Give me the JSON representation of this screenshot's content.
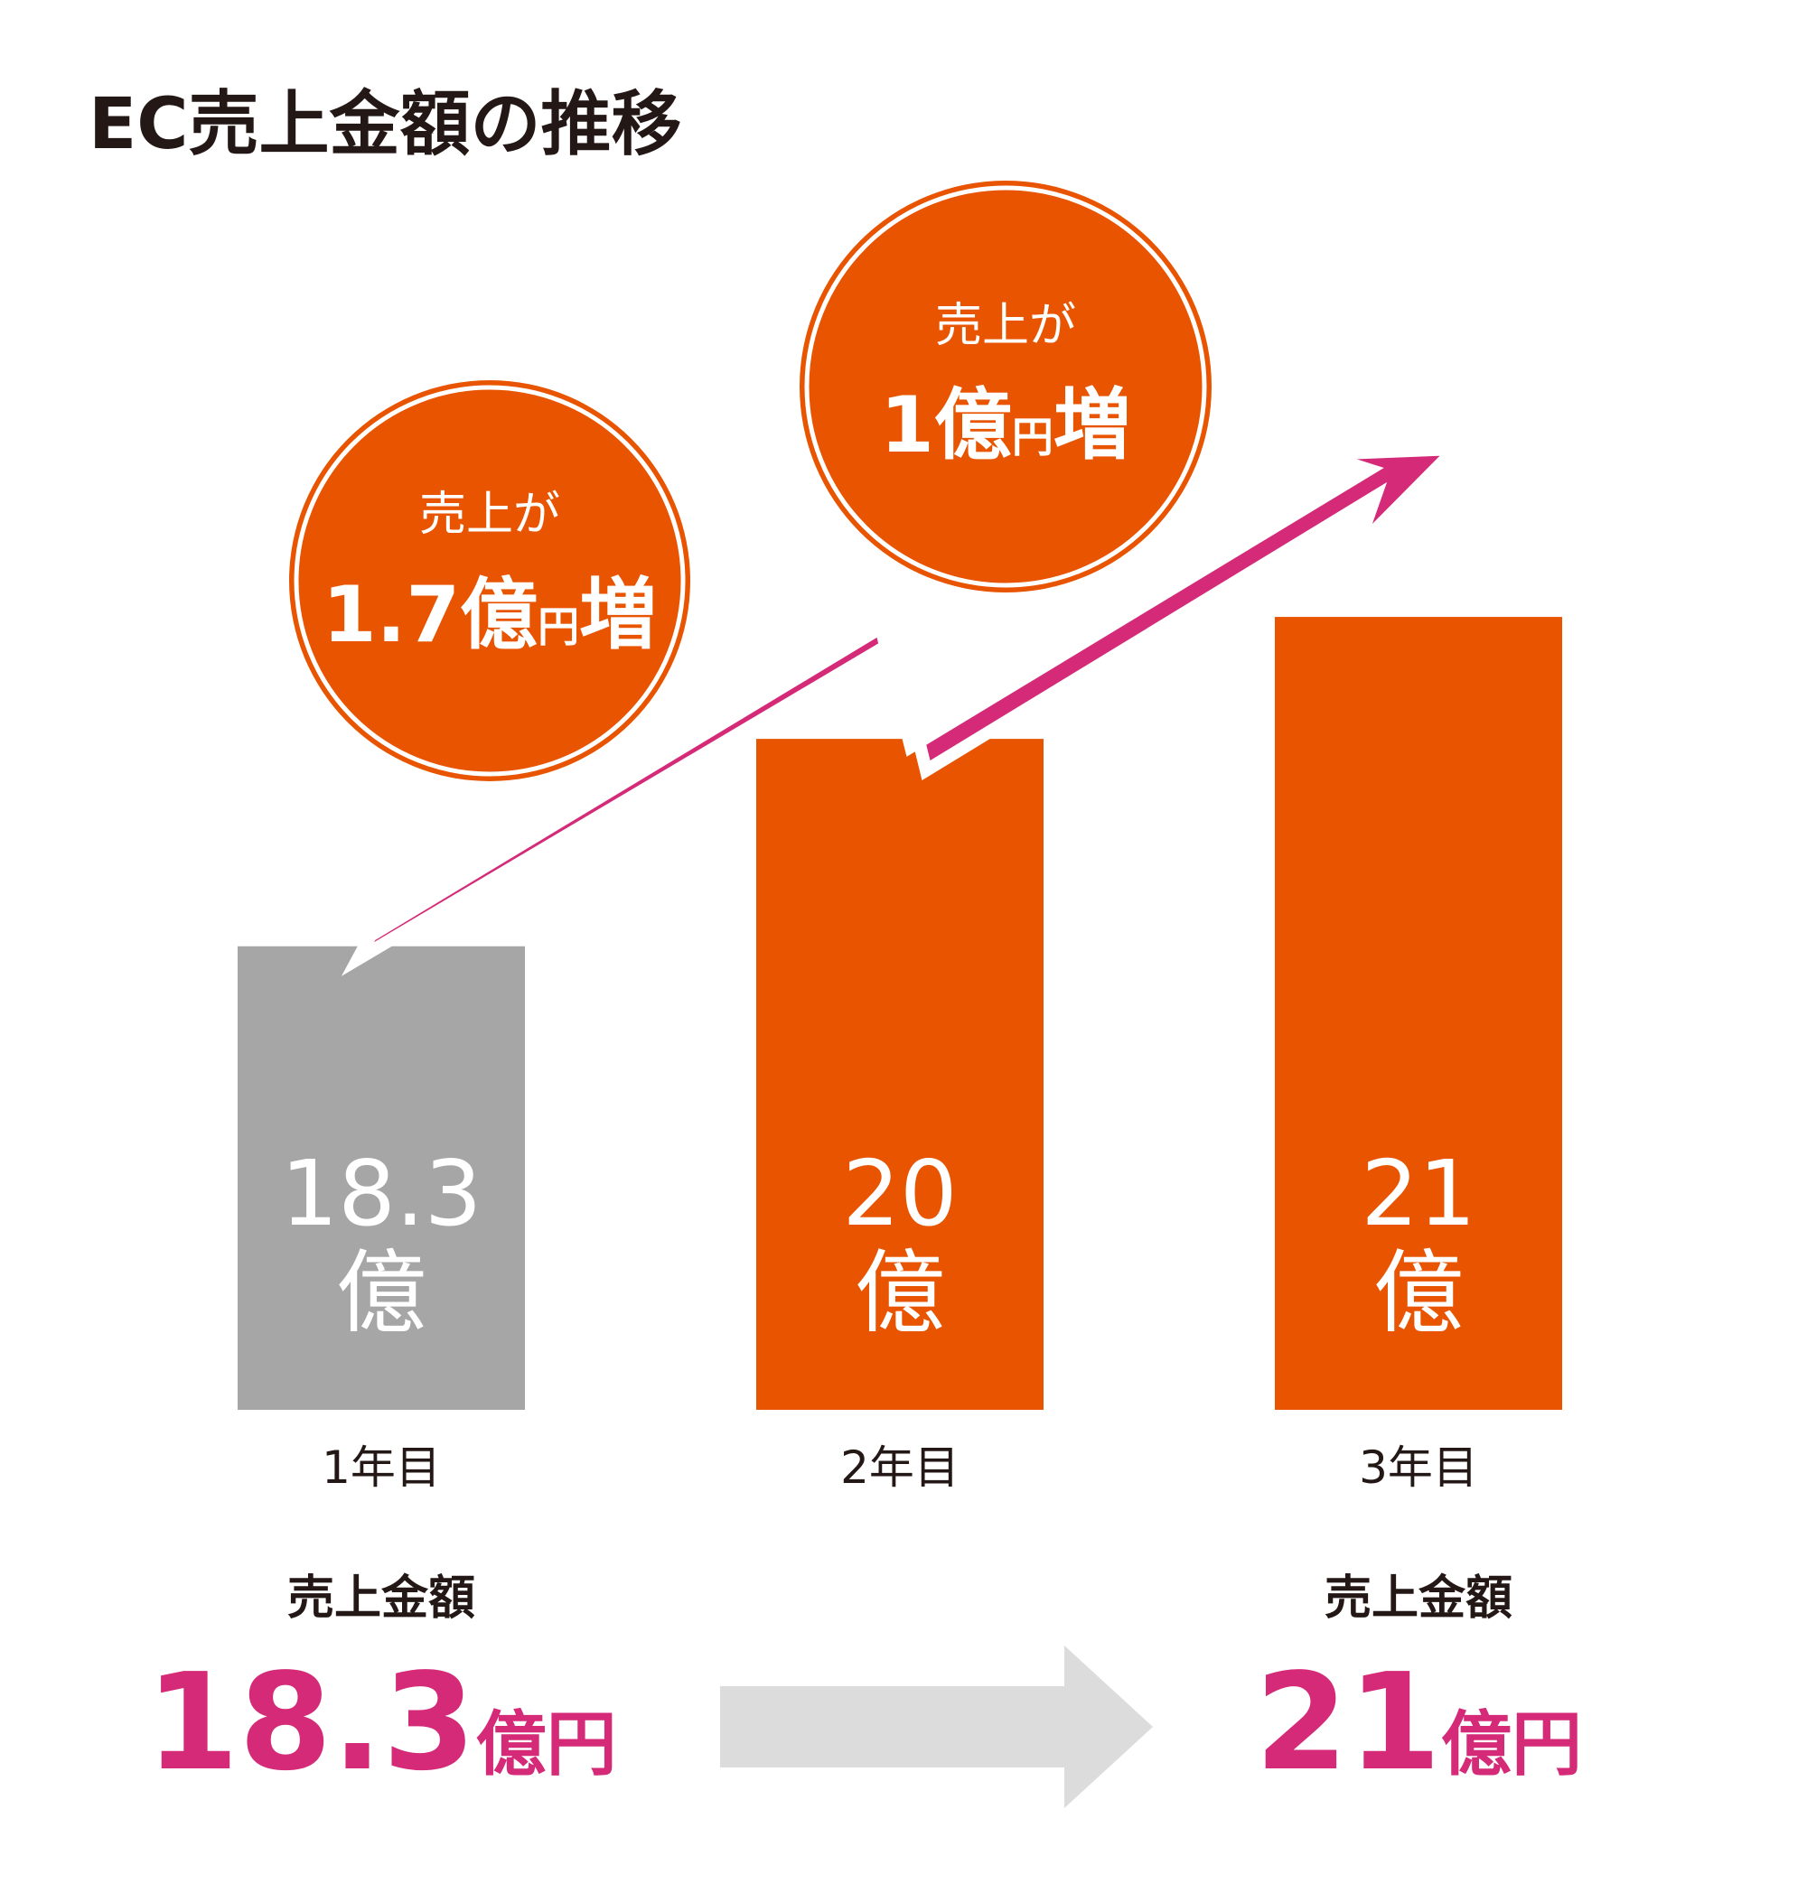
{
  "chart_data": {
    "type": "bar",
    "title": "EC売上金額の推移",
    "categories": [
      "1年目",
      "2年目",
      "3年目"
    ],
    "values": [
      18.3,
      20,
      21
    ],
    "value_labels": [
      {
        "number": "18.3",
        "unit": "億"
      },
      {
        "number": "20",
        "unit": "億"
      },
      {
        "number": "21",
        "unit": "億"
      }
    ],
    "ylim": [
      14.5,
      22
    ],
    "colors": {
      "baseline_bar": "#a6a6a6",
      "bar": "#e85400",
      "trend_arrow": "#d42a77",
      "summary_arrow": "#dcdcdc",
      "title_text": "#231815",
      "accent_text": "#d42a77"
    },
    "annotations": [
      {
        "line1": "売上が",
        "amount": "1.7億",
        "unit": "円",
        "suffix": "増"
      },
      {
        "line1": "売上が",
        "amount": "1億",
        "unit": "円",
        "suffix": "増"
      }
    ],
    "summary": {
      "start": {
        "label": "売上金額",
        "amount": "18.3",
        "unit": "億円"
      },
      "end": {
        "label": "売上金額",
        "amount": "21",
        "unit": "億円"
      }
    }
  }
}
